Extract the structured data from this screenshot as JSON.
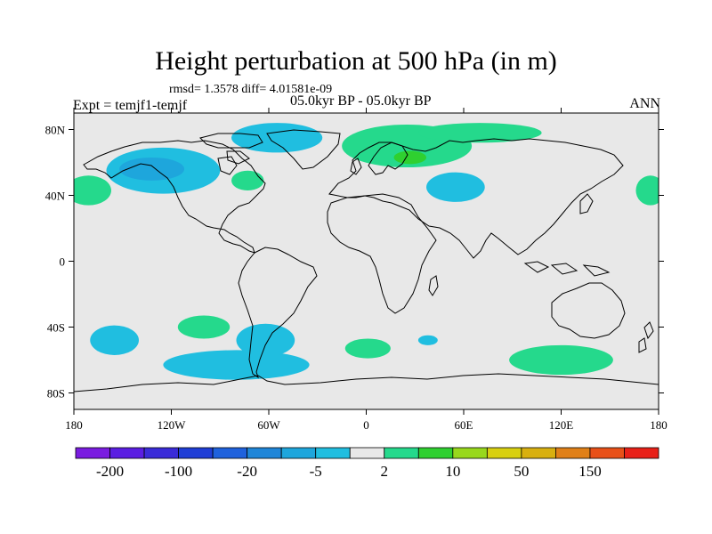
{
  "title": "Height perturbation at 500 hPa (in m)",
  "stats": "rmsd= 1.3578 diff= 4.01581e-09",
  "left_label": "Expt = temjf1-temjf",
  "center_label": "05.0kyr BP - 05.0kyr BP",
  "right_label": "ANN",
  "map": {
    "background_color": "#e8e8e8",
    "lon_range": [
      -180,
      180
    ],
    "lat_range": [
      -90,
      90
    ],
    "lon_ticks": [
      {
        "value": -180,
        "label": "180"
      },
      {
        "value": -120,
        "label": "120W"
      },
      {
        "value": -60,
        "label": "60W"
      },
      {
        "value": 0,
        "label": "0"
      },
      {
        "value": 60,
        "label": "60E"
      },
      {
        "value": 120,
        "label": "120E"
      },
      {
        "value": 180,
        "label": "180"
      }
    ],
    "lat_ticks": [
      {
        "value": 80,
        "label": "80N"
      },
      {
        "value": 40,
        "label": "40N"
      },
      {
        "value": 0,
        "label": "0"
      },
      {
        "value": -40,
        "label": "40S"
      },
      {
        "value": -80,
        "label": "80S"
      }
    ]
  },
  "colorbar": {
    "colors": [
      "#7a1ce0",
      "#5a1ee2",
      "#3a2bd8",
      "#1f3ed6",
      "#1f62dd",
      "#1f86d8",
      "#1ea6dc",
      "#20bee0",
      "#e8e8e8",
      "#25d98c",
      "#2fd030",
      "#98d81c",
      "#d8d010",
      "#d8b010",
      "#e08018",
      "#e85018",
      "#e82018"
    ],
    "labels": [
      {
        "after_index": 0,
        "label": "-200"
      },
      {
        "after_index": 2,
        "label": "-100"
      },
      {
        "after_index": 4,
        "label": "-20"
      },
      {
        "after_index": 6,
        "label": "-5"
      },
      {
        "after_index": 8,
        "label": "2"
      },
      {
        "after_index": 10,
        "label": "10"
      },
      {
        "after_index": 12,
        "label": "50"
      },
      {
        "after_index": 14,
        "label": "150"
      }
    ]
  },
  "anomalies": [
    {
      "lon": -125,
      "lat": 55,
      "rx": 35,
      "ry": 14,
      "color": "#20bee0"
    },
    {
      "lon": -132,
      "lat": 56,
      "rx": 20,
      "ry": 7,
      "color": "#1ea6dc"
    },
    {
      "lon": -55,
      "lat": 75,
      "rx": 28,
      "ry": 9,
      "color": "#20bee0"
    },
    {
      "lon": -73,
      "lat": 49,
      "rx": 10,
      "ry": 6,
      "color": "#25d98c"
    },
    {
      "lon": -171,
      "lat": 43,
      "rx": 14,
      "ry": 9,
      "color": "#25d98c"
    },
    {
      "lon": 175,
      "lat": 43,
      "rx": 9,
      "ry": 9,
      "color": "#25d98c"
    },
    {
      "lon": 25,
      "lat": 70,
      "rx": 40,
      "ry": 13,
      "color": "#25d98c"
    },
    {
      "lon": 70,
      "lat": 78,
      "rx": 38,
      "ry": 6,
      "color": "#25d98c"
    },
    {
      "lon": 27,
      "lat": 63,
      "rx": 10,
      "ry": 4,
      "color": "#2fd030"
    },
    {
      "lon": 55,
      "lat": 45,
      "rx": 18,
      "ry": 9,
      "color": "#20bee0"
    },
    {
      "lon": -155,
      "lat": -48,
      "rx": 15,
      "ry": 9,
      "color": "#20bee0"
    },
    {
      "lon": -100,
      "lat": -40,
      "rx": 16,
      "ry": 7,
      "color": "#25d98c"
    },
    {
      "lon": -80,
      "lat": -63,
      "rx": 45,
      "ry": 9,
      "color": "#20bee0"
    },
    {
      "lon": -62,
      "lat": -48,
      "rx": 18,
      "ry": 10,
      "color": "#20bee0"
    },
    {
      "lon": 1,
      "lat": -53,
      "rx": 14,
      "ry": 6,
      "color": "#25d98c"
    },
    {
      "lon": 38,
      "lat": -48,
      "rx": 6,
      "ry": 3,
      "color": "#20bee0"
    },
    {
      "lon": 120,
      "lat": -60,
      "rx": 32,
      "ry": 9,
      "color": "#25d98c"
    }
  ]
}
